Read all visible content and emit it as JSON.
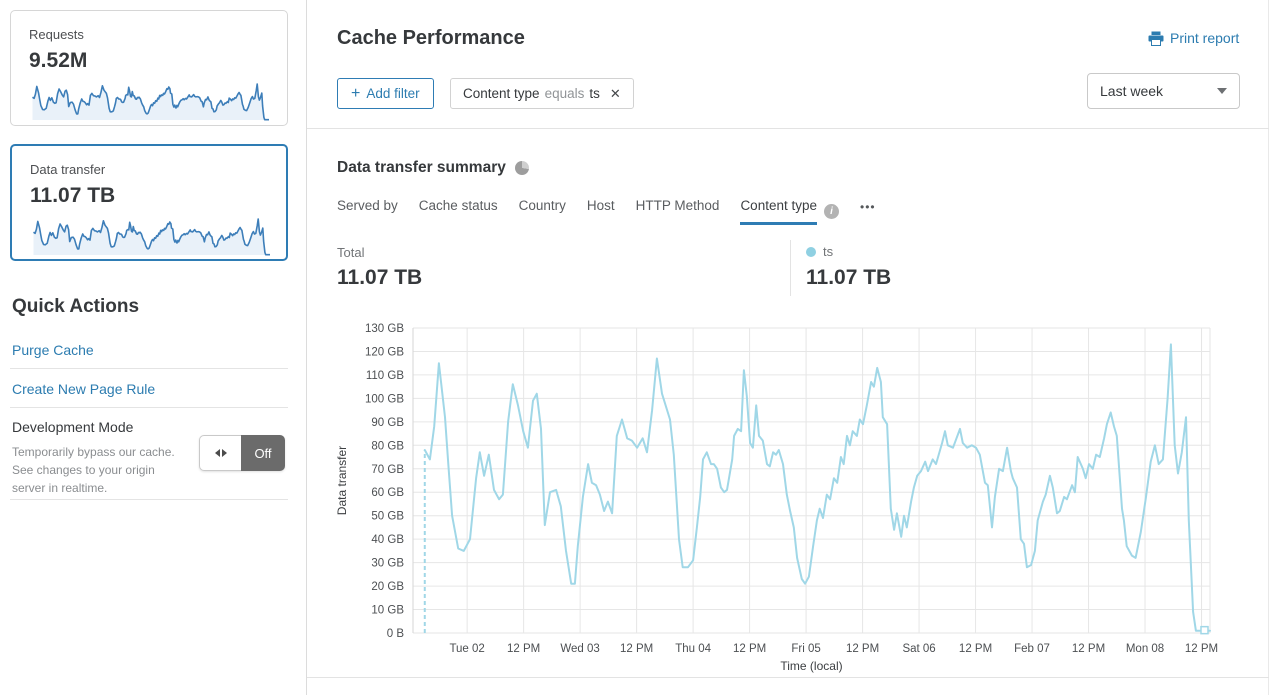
{
  "colors": {
    "accent_blue": "#2e7cb4",
    "link_blue": "#2c7cb0",
    "series_blue": "#a0d7e7",
    "legend_dot": "#8fd0e2",
    "spark_stroke": "#3d7eb9",
    "spark_fill": "#e9f1f9"
  },
  "icons": {
    "close": "✕",
    "plus": "+",
    "more": "•••",
    "info": "i"
  },
  "sidebar": {
    "requests_card": {
      "label": "Requests",
      "value": "9.52M"
    },
    "data_transfer_card": {
      "label": "Data transfer",
      "value": "11.07 TB"
    },
    "quick_actions": {
      "title": "Quick Actions",
      "links": [
        "Purge Cache",
        "Create New Page Rule"
      ],
      "development_mode": {
        "title": "Development Mode",
        "description": "Temporarily bypass our cache. See changes to your origin server in realtime.",
        "state_label": "Off"
      }
    }
  },
  "header": {
    "title": "Cache Performance",
    "print_label": "Print report",
    "add_filter_label": "Add filter",
    "filter": {
      "field": "Content type",
      "operator": "equals",
      "value": "ts"
    },
    "time_range": "Last week"
  },
  "summary": {
    "title": "Data transfer summary",
    "tabs": [
      {
        "label": "Served by"
      },
      {
        "label": "Cache status"
      },
      {
        "label": "Country"
      },
      {
        "label": "Host"
      },
      {
        "label": "HTTP Method"
      },
      {
        "label": "Content type",
        "active": true
      }
    ],
    "total_label": "Total",
    "total_value": "11.07 TB",
    "legend": {
      "name": "ts",
      "value": "11.07 TB"
    }
  },
  "chart_data": {
    "type": "line",
    "series_name": "ts",
    "xlabel": "Time (local)",
    "ylabel": "Data transfer",
    "ylim": [
      0,
      130
    ],
    "t_max": 169.3,
    "grid": true,
    "lead_in_dashed": true,
    "y_ticks": [
      {
        "v": 0,
        "label": "0 B"
      },
      {
        "v": 10,
        "label": "10 GB"
      },
      {
        "v": 20,
        "label": "20 GB"
      },
      {
        "v": 30,
        "label": "30 GB"
      },
      {
        "v": 40,
        "label": "40 GB"
      },
      {
        "v": 50,
        "label": "50 GB"
      },
      {
        "v": 60,
        "label": "60 GB"
      },
      {
        "v": 70,
        "label": "70 GB"
      },
      {
        "v": 80,
        "label": "80 GB"
      },
      {
        "v": 90,
        "label": "90 GB"
      },
      {
        "v": 100,
        "label": "100 GB"
      },
      {
        "v": 110,
        "label": "110 GB"
      },
      {
        "v": 120,
        "label": "120 GB"
      },
      {
        "v": 130,
        "label": "130 GB"
      }
    ],
    "x_ticks": [
      {
        "t": 11.5,
        "label": "Tue 02"
      },
      {
        "t": 23.5,
        "label": "12 PM"
      },
      {
        "t": 35.5,
        "label": "Wed 03"
      },
      {
        "t": 47.5,
        "label": "12 PM"
      },
      {
        "t": 59.5,
        "label": "Thu 04"
      },
      {
        "t": 71.5,
        "label": "12 PM"
      },
      {
        "t": 83.5,
        "label": "Fri 05"
      },
      {
        "t": 95.5,
        "label": "12 PM"
      },
      {
        "t": 107.5,
        "label": "Sat 06"
      },
      {
        "t": 119.5,
        "label": "12 PM"
      },
      {
        "t": 131.5,
        "label": "Feb 07"
      },
      {
        "t": 143.5,
        "label": "12 PM"
      },
      {
        "t": 155.5,
        "label": "Mon 08"
      },
      {
        "t": 167.5,
        "label": "12 PM"
      }
    ],
    "points": [
      [
        2.5,
        78
      ],
      [
        3.6,
        74
      ],
      [
        4.5,
        88
      ],
      [
        5.5,
        115
      ],
      [
        6.8,
        92
      ],
      [
        7.5,
        72
      ],
      [
        8.3,
        50
      ],
      [
        9.6,
        36
      ],
      [
        10.8,
        35
      ],
      [
        12.1,
        40
      ],
      [
        13.4,
        66
      ],
      [
        14.2,
        77
      ],
      [
        15.1,
        67
      ],
      [
        16.1,
        76
      ],
      [
        17.2,
        61
      ],
      [
        18.3,
        57
      ],
      [
        19.1,
        59
      ],
      [
        20.2,
        90
      ],
      [
        21.2,
        106
      ],
      [
        22.3,
        97
      ],
      [
        23.4,
        86
      ],
      [
        24.4,
        79
      ],
      [
        25.5,
        99
      ],
      [
        26.3,
        102
      ],
      [
        27.2,
        87
      ],
      [
        28,
        46
      ],
      [
        29.1,
        60
      ],
      [
        30.4,
        61
      ],
      [
        31.4,
        54
      ],
      [
        32.5,
        35
      ],
      [
        33.6,
        21
      ],
      [
        34.4,
        21
      ],
      [
        35,
        37
      ],
      [
        36.1,
        58
      ],
      [
        37.2,
        72
      ],
      [
        38,
        64
      ],
      [
        38.9,
        63
      ],
      [
        39.7,
        59
      ],
      [
        40.6,
        52
      ],
      [
        41.4,
        56
      ],
      [
        42.3,
        51
      ],
      [
        43.3,
        84
      ],
      [
        44.4,
        91
      ],
      [
        45.5,
        83
      ],
      [
        46.5,
        82
      ],
      [
        47.6,
        79
      ],
      [
        48.8,
        83
      ],
      [
        49.7,
        77
      ],
      [
        50.8,
        95
      ],
      [
        51.8,
        117
      ],
      [
        52.9,
        102
      ],
      [
        54.6,
        91
      ],
      [
        55.4,
        76
      ],
      [
        56.5,
        40
      ],
      [
        57.3,
        28
      ],
      [
        58.4,
        28
      ],
      [
        59.5,
        31
      ],
      [
        60.3,
        45
      ],
      [
        61,
        58
      ],
      [
        61.6,
        74
      ],
      [
        62.4,
        77
      ],
      [
        63.3,
        72
      ],
      [
        63.9,
        72
      ],
      [
        64.6,
        70
      ],
      [
        65.4,
        62
      ],
      [
        66.1,
        60
      ],
      [
        66.7,
        61
      ],
      [
        67.8,
        74
      ],
      [
        68.2,
        84
      ],
      [
        69,
        87
      ],
      [
        69.7,
        86
      ],
      [
        70.3,
        112
      ],
      [
        70.9,
        101
      ],
      [
        71.6,
        81
      ],
      [
        72.2,
        79
      ],
      [
        72.9,
        97
      ],
      [
        73.5,
        84
      ],
      [
        74.3,
        82
      ],
      [
        75.2,
        72
      ],
      [
        75.8,
        71
      ],
      [
        76.5,
        77
      ],
      [
        77.1,
        76
      ],
      [
        77.7,
        78
      ],
      [
        78.6,
        72
      ],
      [
        79.4,
        59
      ],
      [
        80.1,
        52
      ],
      [
        80.9,
        45
      ],
      [
        81.6,
        32
      ],
      [
        82.6,
        23
      ],
      [
        83.3,
        21
      ],
      [
        84.1,
        24
      ],
      [
        85,
        37
      ],
      [
        85.8,
        48
      ],
      [
        86.4,
        53
      ],
      [
        87.1,
        49
      ],
      [
        87.9,
        59
      ],
      [
        88.6,
        57
      ],
      [
        89.4,
        66
      ],
      [
        90.1,
        64
      ],
      [
        90.9,
        75
      ],
      [
        91.5,
        72
      ],
      [
        92.2,
        84
      ],
      [
        92.8,
        80
      ],
      [
        93.4,
        86
      ],
      [
        94.3,
        84
      ],
      [
        94.9,
        91
      ],
      [
        95.6,
        89
      ],
      [
        96.4,
        97
      ],
      [
        97.3,
        107
      ],
      [
        97.9,
        105
      ],
      [
        98.6,
        113
      ],
      [
        99.4,
        107
      ],
      [
        99.8,
        92
      ],
      [
        100.7,
        89
      ],
      [
        101.5,
        53
      ],
      [
        102.2,
        44
      ],
      [
        102.8,
        51
      ],
      [
        103.7,
        41
      ],
      [
        104.3,
        50
      ],
      [
        104.9,
        45
      ],
      [
        105.8,
        56
      ],
      [
        106.4,
        62
      ],
      [
        107.1,
        67
      ],
      [
        107.9,
        69
      ],
      [
        108.8,
        73
      ],
      [
        109.4,
        69
      ],
      [
        110.4,
        74
      ],
      [
        111.1,
        72
      ],
      [
        112.4,
        81
      ],
      [
        113,
        86
      ],
      [
        113.6,
        80
      ],
      [
        114.7,
        79
      ],
      [
        116.2,
        87
      ],
      [
        116.8,
        81
      ],
      [
        117.7,
        79
      ],
      [
        118.7,
        80
      ],
      [
        119.6,
        79
      ],
      [
        120.4,
        76
      ],
      [
        121.5,
        64
      ],
      [
        122.1,
        63
      ],
      [
        123,
        45
      ],
      [
        123.6,
        58
      ],
      [
        124.5,
        70
      ],
      [
        125.3,
        69
      ],
      [
        126.2,
        79
      ],
      [
        127,
        69
      ],
      [
        127.4,
        66
      ],
      [
        128.3,
        62
      ],
      [
        129.1,
        40
      ],
      [
        129.8,
        38
      ],
      [
        130.4,
        28
      ],
      [
        131.3,
        29
      ],
      [
        132.1,
        35
      ],
      [
        132.7,
        48
      ],
      [
        133.8,
        56
      ],
      [
        134.4,
        59
      ],
      [
        135.3,
        67
      ],
      [
        135.9,
        62
      ],
      [
        136.8,
        51
      ],
      [
        137.4,
        52
      ],
      [
        138.3,
        58
      ],
      [
        138.9,
        57
      ],
      [
        140,
        63
      ],
      [
        140.6,
        60
      ],
      [
        141.2,
        75
      ],
      [
        142.3,
        70
      ],
      [
        142.9,
        66
      ],
      [
        143.6,
        72
      ],
      [
        144.4,
        70
      ],
      [
        145.1,
        76
      ],
      [
        145.9,
        75
      ],
      [
        146.8,
        83
      ],
      [
        147.4,
        89
      ],
      [
        148.2,
        94
      ],
      [
        148.9,
        88
      ],
      [
        149.5,
        84
      ],
      [
        150.6,
        53
      ],
      [
        151,
        48
      ],
      [
        151.6,
        37
      ],
      [
        152.7,
        33
      ],
      [
        153.5,
        32
      ],
      [
        154.6,
        43
      ],
      [
        155.7,
        58
      ],
      [
        156.7,
        73
      ],
      [
        157.6,
        80
      ],
      [
        158.4,
        72
      ],
      [
        159.3,
        74
      ],
      [
        160.3,
        100
      ],
      [
        161,
        123
      ],
      [
        161.8,
        80
      ],
      [
        162.5,
        68
      ],
      [
        163.3,
        77
      ],
      [
        164.2,
        92
      ],
      [
        164.8,
        48
      ],
      [
        165.7,
        9
      ],
      [
        166.3,
        1
      ],
      [
        167.4,
        1
      ],
      [
        168.4,
        1
      ],
      [
        169.3,
        1
      ]
    ]
  }
}
